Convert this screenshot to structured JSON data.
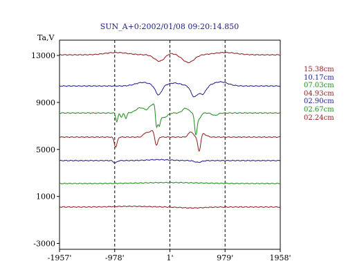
{
  "chart_data": {
    "type": "line",
    "title": "SUN_A+0:2002/01/08 09:20:14.850",
    "ylabel": "Ta,V",
    "xlabel": "",
    "xlim": [
      -1957,
      1958
    ],
    "ylim": [
      -3500,
      14300
    ],
    "x_ticks": [
      {
        "value": -1957,
        "label": "-1957'"
      },
      {
        "value": -978,
        "label": "-978'"
      },
      {
        "value": 1,
        "label": "1'"
      },
      {
        "value": 979,
        "label": "979'"
      },
      {
        "value": 1958,
        "label": "1958'"
      }
    ],
    "y_ticks": [
      {
        "value": 13000,
        "label": "13000"
      },
      {
        "value": 9000,
        "label": "9000"
      },
      {
        "value": 5000,
        "label": "5000"
      },
      {
        "value": 1000,
        "label": "1000"
      },
      {
        "value": -3000,
        "label": "-3000"
      }
    ],
    "vlines": [
      -978,
      1,
      979
    ],
    "grid": false,
    "legend_position": "right",
    "series": [
      {
        "name": "15.38cm",
        "color": "#8b1a1a",
        "baseline": 13050,
        "features": [
          {
            "x": -950,
            "w": 200,
            "amp": 200
          },
          {
            "x": -180,
            "w": 90,
            "amp": -550
          },
          {
            "x": 0,
            "w": 80,
            "amp": 160
          },
          {
            "x": 330,
            "w": 100,
            "amp": -650
          },
          {
            "x": 980,
            "w": 200,
            "amp": 200
          }
        ]
      },
      {
        "name": "10.17cm",
        "color": "#1a1a8b",
        "baseline": 10400,
        "features": [
          {
            "x": -480,
            "w": 130,
            "amp": 300
          },
          {
            "x": -200,
            "w": 55,
            "amp": -800
          },
          {
            "x": 80,
            "w": 120,
            "amp": 250
          },
          {
            "x": 430,
            "w": 55,
            "amp": -900
          },
          {
            "x": 580,
            "w": 60,
            "amp": -700
          },
          {
            "x": 900,
            "w": 130,
            "amp": 350
          }
        ]
      },
      {
        "name": "07.03cm",
        "color": "#1a8b1a",
        "baseline": 8100,
        "features": [
          {
            "x": -940,
            "w": 18,
            "amp": -750
          },
          {
            "x": -860,
            "w": 18,
            "amp": -350
          },
          {
            "x": -780,
            "w": 18,
            "amp": -450
          },
          {
            "x": -520,
            "w": 80,
            "amp": 450
          },
          {
            "x": -320,
            "w": 50,
            "amp": 650
          },
          {
            "x": -260,
            "w": 25,
            "amp": 500
          },
          {
            "x": -240,
            "w": 18,
            "amp": -1600
          },
          {
            "x": -190,
            "w": 20,
            "amp": -1000
          },
          {
            "x": -110,
            "w": 60,
            "amp": -400
          },
          {
            "x": 280,
            "w": 55,
            "amp": 400
          },
          {
            "x": 460,
            "w": 22,
            "amp": -1800
          },
          {
            "x": 520,
            "w": 30,
            "amp": -500
          },
          {
            "x": 800,
            "w": 50,
            "amp": -200
          }
        ]
      },
      {
        "name": "04.93cm",
        "color": "#8b1a1a",
        "baseline": 6050,
        "features": [
          {
            "x": -960,
            "w": 25,
            "amp": -850
          },
          {
            "x": -430,
            "w": 40,
            "amp": 350
          },
          {
            "x": -320,
            "w": 45,
            "amp": 550
          },
          {
            "x": -240,
            "w": 25,
            "amp": -800
          },
          {
            "x": 370,
            "w": 40,
            "amp": 450
          },
          {
            "x": 520,
            "w": 25,
            "amp": -1400
          },
          {
            "x": 580,
            "w": 60,
            "amp": 300
          }
        ]
      },
      {
        "name": "02.90cm",
        "color": "#1a1a8b",
        "baseline": 4050,
        "features": [
          {
            "x": -970,
            "w": 30,
            "amp": -200
          },
          {
            "x": -200,
            "w": 200,
            "amp": 80
          },
          {
            "x": 500,
            "w": 60,
            "amp": -150
          }
        ]
      },
      {
        "name": "02.67cm",
        "color": "#1a8b1a",
        "baseline": 2100,
        "features": [
          {
            "x": 0,
            "w": 500,
            "amp": 80
          }
        ]
      },
      {
        "name": "02.24cm",
        "color": "#8b1a1a",
        "baseline": 100,
        "features": [
          {
            "x": -700,
            "w": 300,
            "amp": 60
          },
          {
            "x": 400,
            "w": 200,
            "amp": -80
          }
        ]
      }
    ]
  }
}
